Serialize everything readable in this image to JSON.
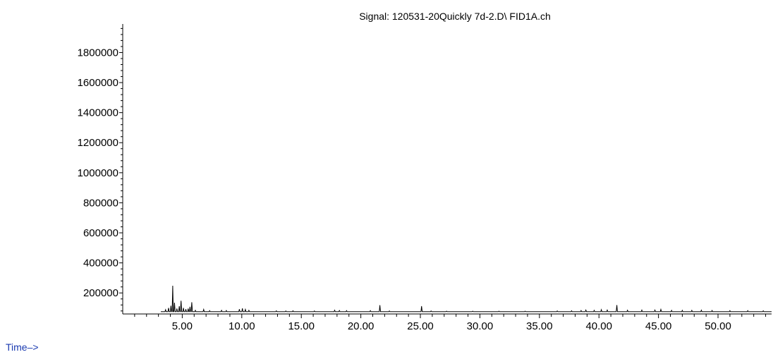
{
  "chart_data": {
    "type": "line",
    "title": "Signal: 120531-20Quickly 7d-2.D\\ FID1A.ch",
    "xlabel": "Time–>",
    "ylabel": "",
    "xlim": [
      0,
      54.5
    ],
    "ylim": [
      60000,
      1990000
    ],
    "baseline": 75000,
    "x_ticks": [
      5,
      10,
      15,
      20,
      25,
      30,
      35,
      40,
      45,
      50
    ],
    "x_tick_labels": [
      "5.00",
      "10.00",
      "15.00",
      "20.00",
      "25.00",
      "30.00",
      "35.00",
      "40.00",
      "45.00",
      "50.00"
    ],
    "x_minor_step": 1,
    "y_ticks": [
      200000,
      400000,
      600000,
      800000,
      1000000,
      1200000,
      1400000,
      1600000,
      1800000
    ],
    "y_tick_labels": [
      "200000",
      "400000",
      "600000",
      "800000",
      "1000000",
      "1200000",
      "1400000",
      "1600000",
      "1800000"
    ],
    "y_minor_step": 40000,
    "grid": false,
    "legend": "none",
    "series": [
      {
        "color": "#000000",
        "peaks": [
          [
            3.6,
            88000
          ],
          [
            3.85,
            100000
          ],
          [
            4.05,
            115000
          ],
          [
            4.2,
            248000
          ],
          [
            4.35,
            135000
          ],
          [
            4.55,
            96000
          ],
          [
            4.75,
            112000
          ],
          [
            4.9,
            148000
          ],
          [
            5.1,
            100000
          ],
          [
            5.3,
            92000
          ],
          [
            5.5,
            96000
          ],
          [
            5.65,
            108000
          ],
          [
            5.8,
            138000
          ],
          [
            6.1,
            84000
          ],
          [
            6.8,
            90000
          ],
          [
            7.3,
            82000
          ],
          [
            8.3,
            84000
          ],
          [
            8.7,
            83000
          ],
          [
            9.8,
            92000
          ],
          [
            10.05,
            97000
          ],
          [
            10.3,
            90000
          ],
          [
            10.6,
            84000
          ],
          [
            12.9,
            81000
          ],
          [
            13.7,
            80000
          ],
          [
            14.3,
            81000
          ],
          [
            16.1,
            80000
          ],
          [
            17.8,
            85000
          ],
          [
            18.2,
            83000
          ],
          [
            18.8,
            82000
          ],
          [
            20.8,
            82000
          ],
          [
            21.6,
            118000
          ],
          [
            22.4,
            80000
          ],
          [
            25.1,
            112000
          ],
          [
            25.9,
            80000
          ],
          [
            27.2,
            79000
          ],
          [
            29.4,
            79000
          ],
          [
            31.6,
            79000
          ],
          [
            33.8,
            79000
          ],
          [
            36.5,
            80000
          ],
          [
            37.7,
            81000
          ],
          [
            38.5,
            83000
          ],
          [
            38.9,
            86000
          ],
          [
            39.6,
            84000
          ],
          [
            40.2,
            88000
          ],
          [
            40.7,
            86000
          ],
          [
            41.5,
            119000
          ],
          [
            42.4,
            85000
          ],
          [
            43.6,
            86000
          ],
          [
            44.7,
            86000
          ],
          [
            45.2,
            90000
          ],
          [
            46.1,
            84000
          ],
          [
            47.0,
            84000
          ],
          [
            47.8,
            84000
          ],
          [
            48.6,
            85000
          ],
          [
            49.5,
            83000
          ],
          [
            51.0,
            82000
          ],
          [
            52.5,
            82000
          ],
          [
            53.8,
            81000
          ]
        ]
      }
    ]
  }
}
